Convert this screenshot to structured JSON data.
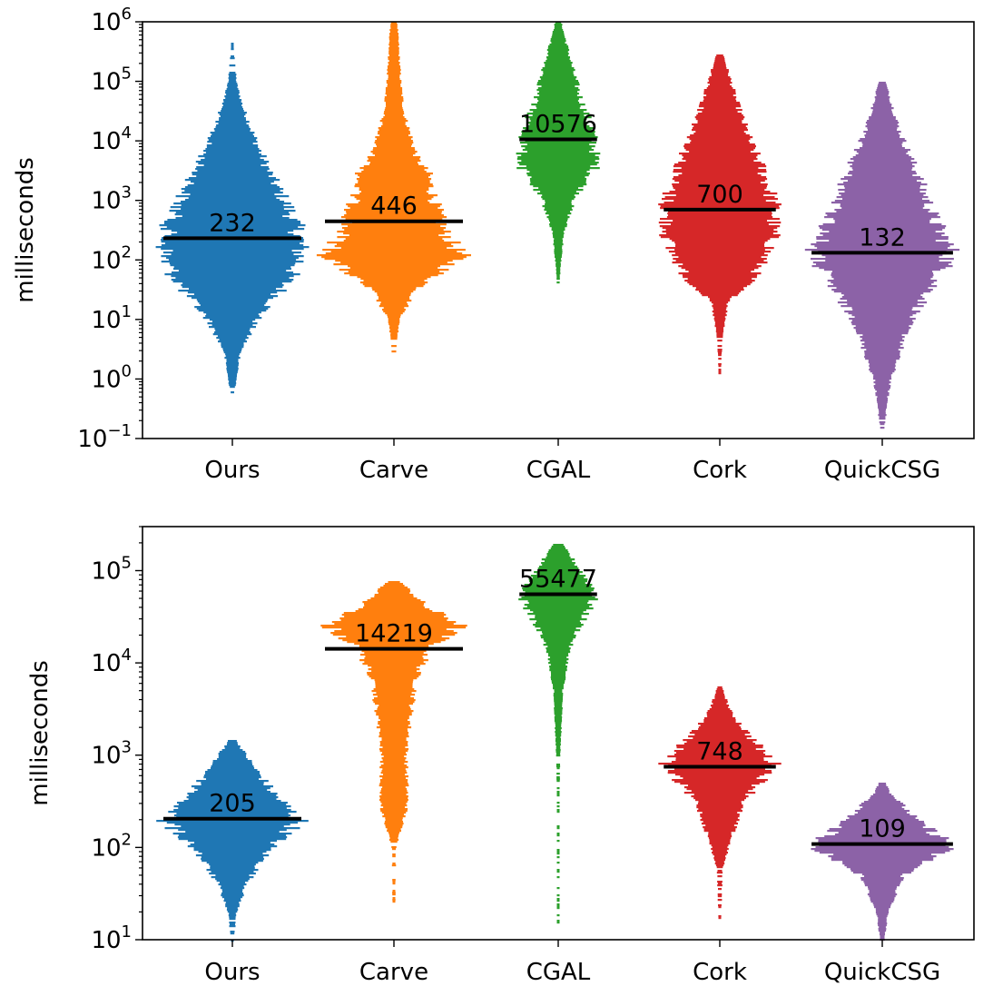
{
  "chart_data": [
    {
      "type": "beeswarm",
      "ylabel": "milliseconds",
      "yscale": "log",
      "ylim": [
        0.1,
        1000000
      ],
      "yticks": [
        {
          "value": 0.1,
          "base": "10",
          "exp": "−1"
        },
        {
          "value": 1,
          "base": "10",
          "exp": "0"
        },
        {
          "value": 10,
          "base": "10",
          "exp": "1"
        },
        {
          "value": 100,
          "base": "10",
          "exp": "2"
        },
        {
          "value": 1000,
          "base": "10",
          "exp": "3"
        },
        {
          "value": 10000,
          "base": "10",
          "exp": "4"
        },
        {
          "value": 100000,
          "base": "10",
          "exp": "5"
        },
        {
          "value": 1000000,
          "base": "10",
          "exp": "6"
        }
      ],
      "categories": [
        "Ours",
        "Carve",
        "CGAL",
        "Cork",
        "QuickCSG"
      ],
      "medians": [
        232,
        446,
        10576,
        700,
        132
      ],
      "median_labels": [
        "232",
        "446",
        "10576",
        "700",
        "132"
      ],
      "series": [
        {
          "name": "Ours",
          "color": "#1f77b4",
          "min": 0.6,
          "max": 500000,
          "density": [
            [
              0.6,
              0.02
            ],
            [
              1,
              0.06
            ],
            [
              3,
              0.12
            ],
            [
              10,
              0.35
            ],
            [
              30,
              0.7
            ],
            [
              100,
              1.0
            ],
            [
              250,
              1.0
            ],
            [
              700,
              0.85
            ],
            [
              3000,
              0.55
            ],
            [
              10000,
              0.35
            ],
            [
              40000,
              0.15
            ],
            [
              100000,
              0.06
            ],
            [
              500000,
              0.01
            ]
          ]
        },
        {
          "name": "Carve",
          "color": "#ff7f0e",
          "min": 3,
          "max": 1000000,
          "density": [
            [
              3,
              0.03
            ],
            [
              10,
              0.08
            ],
            [
              30,
              0.3
            ],
            [
              100,
              0.9
            ],
            [
              120,
              1.0
            ],
            [
              300,
              0.75
            ],
            [
              1000,
              0.6
            ],
            [
              3000,
              0.5
            ],
            [
              5000,
              0.35
            ],
            [
              30000,
              0.15
            ],
            [
              100000,
              0.1
            ],
            [
              1000000,
              0.05
            ]
          ]
        },
        {
          "name": "CGAL",
          "color": "#2ca02c",
          "min": 30,
          "max": 1000000,
          "density": [
            [
              30,
              0.02
            ],
            [
              80,
              0.06
            ],
            [
              300,
              0.15
            ],
            [
              1000,
              0.4
            ],
            [
              4000,
              1.0
            ],
            [
              15000,
              0.9
            ],
            [
              50000,
              0.6
            ],
            [
              150000,
              0.4
            ],
            [
              500000,
              0.2
            ],
            [
              1000000,
              0.08
            ]
          ]
        },
        {
          "name": "Cork",
          "color": "#d62728",
          "min": 1.2,
          "max": 300000,
          "density": [
            [
              1.2,
              0.02
            ],
            [
              5,
              0.05
            ],
            [
              20,
              0.15
            ],
            [
              50,
              0.6
            ],
            [
              200,
              0.95
            ],
            [
              800,
              1.0
            ],
            [
              3000,
              0.8
            ],
            [
              10000,
              0.55
            ],
            [
              50000,
              0.3
            ],
            [
              300000,
              0.06
            ]
          ]
        },
        {
          "name": "QuickCSG",
          "color": "#8c62a7",
          "min": 0.12,
          "max": 120000,
          "density": [
            [
              0.12,
              0.02
            ],
            [
              0.5,
              0.08
            ],
            [
              1,
              0.12
            ],
            [
              10,
              0.4
            ],
            [
              50,
              0.8
            ],
            [
              140,
              1.0
            ],
            [
              500,
              0.75
            ],
            [
              3000,
              0.5
            ],
            [
              15000,
              0.25
            ],
            [
              50000,
              0.12
            ],
            [
              120000,
              0.03
            ]
          ]
        }
      ]
    },
    {
      "type": "beeswarm",
      "ylabel": "milliseconds",
      "yscale": "log",
      "ylim": [
        10,
        300000
      ],
      "yticks": [
        {
          "value": 10,
          "base": "10",
          "exp": "1"
        },
        {
          "value": 100,
          "base": "10",
          "exp": "2"
        },
        {
          "value": 1000,
          "base": "10",
          "exp": "3"
        },
        {
          "value": 10000,
          "base": "10",
          "exp": "4"
        },
        {
          "value": 100000,
          "base": "10",
          "exp": "5"
        }
      ],
      "categories": [
        "Ours",
        "Carve",
        "CGAL",
        "Cork",
        "QuickCSG"
      ],
      "medians": [
        205,
        14219,
        55477,
        748,
        109
      ],
      "median_labels": [
        "205",
        "14219",
        "55477",
        "748",
        "109"
      ],
      "series": [
        {
          "name": "Ours",
          "color": "#1f77b4",
          "min": 10,
          "max": 1500,
          "density": [
            [
              10,
              0.02
            ],
            [
              20,
              0.06
            ],
            [
              40,
              0.2
            ],
            [
              100,
              0.55
            ],
            [
              200,
              1.0
            ],
            [
              400,
              0.6
            ],
            [
              800,
              0.3
            ],
            [
              1500,
              0.05
            ]
          ]
        },
        {
          "name": "Carve",
          "color": "#ff7f0e",
          "min": 25,
          "max": 80000,
          "density": [
            [
              25,
              0.02
            ],
            [
              100,
              0.03
            ],
            [
              300,
              0.2
            ],
            [
              1000,
              0.18
            ],
            [
              3000,
              0.25
            ],
            [
              8000,
              0.35
            ],
            [
              15000,
              0.55
            ],
            [
              27000,
              1.0
            ],
            [
              40000,
              0.5
            ],
            [
              80000,
              0.08
            ]
          ]
        },
        {
          "name": "CGAL",
          "color": "#2ca02c",
          "min": 15,
          "max": 200000,
          "density": [
            [
              15,
              0.02
            ],
            [
              200,
              0.02
            ],
            [
              1000,
              0.05
            ],
            [
              5000,
              0.12
            ],
            [
              15000,
              0.3
            ],
            [
              40000,
              0.8
            ],
            [
              60000,
              1.0
            ],
            [
              100000,
              0.6
            ],
            [
              200000,
              0.1
            ]
          ]
        },
        {
          "name": "Cork",
          "color": "#d62728",
          "min": 15,
          "max": 6000,
          "density": [
            [
              15,
              0.02
            ],
            [
              60,
              0.05
            ],
            [
              100,
              0.15
            ],
            [
              300,
              0.4
            ],
            [
              800,
              1.0
            ],
            [
              1500,
              0.6
            ],
            [
              3000,
              0.2
            ],
            [
              6000,
              0.02
            ]
          ]
        },
        {
          "name": "QuickCSG",
          "color": "#8c62a7",
          "min": 10,
          "max": 550,
          "density": [
            [
              10,
              0.03
            ],
            [
              20,
              0.08
            ],
            [
              50,
              0.3
            ],
            [
              110,
              1.0
            ],
            [
              200,
              0.5
            ],
            [
              400,
              0.12
            ],
            [
              550,
              0.03
            ]
          ]
        }
      ]
    }
  ]
}
